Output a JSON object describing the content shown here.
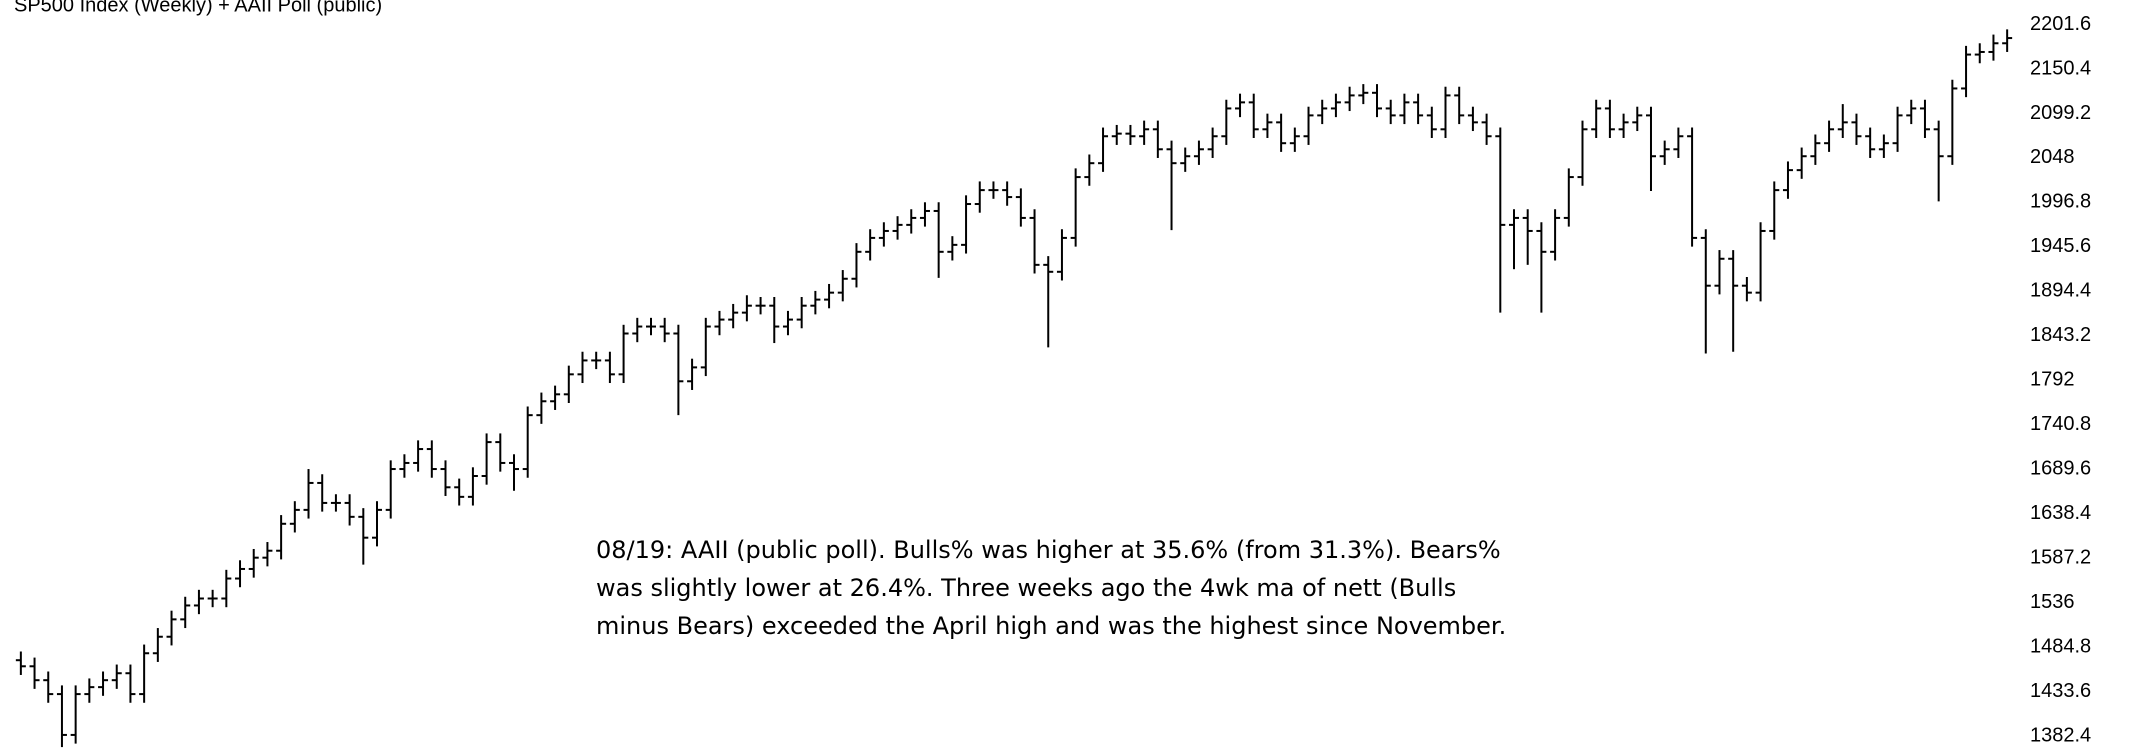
{
  "chart_data": {
    "type": "ohlc",
    "title": "SP500 Index (Weekly) + AAII Poll  (public)",
    "annotation": [
      "08/19: AAII (public poll). Bulls% was higher at 35.6% (from 31.3%). Bears%",
      "was slightly lower at 26.4%. Three weeks ago the 4wk ma of nett (Bulls",
      "minus Bears) exceeded the April high and was the highest since November."
    ],
    "color": "#000000",
    "ylim": [
      1360.9,
      2229.8
    ],
    "yticks": [
      2201.6,
      2150.4,
      2099.2,
      2048,
      1996.8,
      1945.6,
      1894.4,
      1843.2,
      1792,
      1740.8,
      1689.6,
      1638.4,
      1587.2,
      1536,
      1484.8,
      1433.6,
      1382.4
    ],
    "open": [
      1470,
      1463,
      1447,
      1431,
      1384,
      1431,
      1439,
      1447,
      1455,
      1431,
      1478,
      1497,
      1517,
      1533,
      1541,
      1541,
      1564,
      1575,
      1588,
      1596,
      1627,
      1643,
      1674,
      1651,
      1651,
      1635,
      1611,
      1643,
      1690,
      1697,
      1713,
      1690,
      1669,
      1658,
      1682,
      1721,
      1697,
      1690,
      1752,
      1768,
      1776,
      1799,
      1815,
      1815,
      1799,
      1846,
      1854,
      1854,
      1846,
      1791,
      1807,
      1854,
      1862,
      1870,
      1878,
      1878,
      1854,
      1862,
      1878,
      1885,
      1893,
      1909,
      1940,
      1956,
      1964,
      1971,
      1979,
      1987,
      1940,
      1948,
      1995,
      2011,
      2011,
      2003,
      1979,
      1925,
      1917,
      1956,
      2026,
      2042,
      2073,
      2076,
      2073,
      2081,
      2058,
      2042,
      2050,
      2058,
      2073,
      2105,
      2112,
      2081,
      2089,
      2065,
      2073,
      2097,
      2105,
      2112,
      2120,
      2123,
      2105,
      2097,
      2112,
      2097,
      2081,
      2120,
      2097,
      2089,
      2073,
      1971,
      1979,
      1964,
      1940,
      1979,
      2026,
      2081,
      2105,
      2081,
      2089,
      2097,
      2050,
      2058,
      2073,
      1956,
      1901,
      1932,
      1901,
      1893,
      1964,
      2011,
      2034,
      2050,
      2065,
      2081,
      2089,
      2073,
      2058,
      2065,
      2097,
      2105,
      2081,
      2050,
      2128,
      2167,
      2170,
      2180
    ],
    "high": [
      1480,
      1473,
      1457,
      1441,
      1441,
      1449,
      1457,
      1465,
      1465,
      1488,
      1507,
      1527,
      1543,
      1551,
      1551,
      1574,
      1585,
      1598,
      1606,
      1637,
      1653,
      1690,
      1684,
      1661,
      1661,
      1645,
      1653,
      1700,
      1707,
      1723,
      1723,
      1700,
      1679,
      1692,
      1731,
      1731,
      1707,
      1762,
      1778,
      1786,
      1809,
      1825,
      1825,
      1825,
      1856,
      1864,
      1864,
      1864,
      1856,
      1817,
      1864,
      1872,
      1880,
      1890,
      1888,
      1888,
      1872,
      1888,
      1895,
      1903,
      1919,
      1950,
      1966,
      1974,
      1981,
      1989,
      1997,
      1997,
      1958,
      2005,
      2021,
      2021,
      2021,
      2013,
      1989,
      1935,
      1966,
      2036,
      2052,
      2083,
      2086,
      2086,
      2091,
      2091,
      2068,
      2060,
      2068,
      2083,
      2115,
      2122,
      2122,
      2099,
      2099,
      2083,
      2107,
      2115,
      2122,
      2130,
      2133,
      2133,
      2115,
      2122,
      2122,
      2107,
      2130,
      2130,
      2107,
      2099,
      2083,
      1989,
      1989,
      1974,
      1989,
      2036,
      2091,
      2115,
      2115,
      2099,
      2107,
      2107,
      2068,
      2083,
      2083,
      1966,
      1942,
      1942,
      1911,
      1974,
      2021,
      2044,
      2060,
      2075,
      2091,
      2110,
      2099,
      2083,
      2075,
      2107,
      2115,
      2115,
      2091,
      2138,
      2177,
      2180,
      2190,
      2196
    ],
    "low": [
      1453,
      1437,
      1421,
      1370,
      1374,
      1421,
      1429,
      1437,
      1421,
      1421,
      1468,
      1487,
      1507,
      1523,
      1531,
      1531,
      1554,
      1565,
      1578,
      1586,
      1617,
      1633,
      1641,
      1641,
      1625,
      1580,
      1601,
      1633,
      1680,
      1687,
      1680,
      1659,
      1648,
      1648,
      1672,
      1687,
      1665,
      1680,
      1742,
      1758,
      1766,
      1789,
      1805,
      1789,
      1789,
      1836,
      1844,
      1836,
      1752,
      1781,
      1797,
      1844,
      1852,
      1860,
      1868,
      1835,
      1844,
      1852,
      1868,
      1875,
      1883,
      1899,
      1930,
      1946,
      1954,
      1961,
      1969,
      1910,
      1930,
      1938,
      1985,
      2001,
      1993,
      1969,
      1915,
      1830,
      1907,
      1946,
      2016,
      2032,
      2063,
      2063,
      2063,
      2048,
      1965,
      2032,
      2040,
      2048,
      2063,
      2095,
      2071,
      2071,
      2055,
      2055,
      2063,
      2087,
      2095,
      2102,
      2110,
      2095,
      2087,
      2087,
      2087,
      2071,
      2071,
      2087,
      2079,
      2063,
      1870,
      1920,
      1925,
      1870,
      1930,
      1969,
      2016,
      2071,
      2071,
      2071,
      2079,
      2010,
      2040,
      2048,
      1946,
      1823,
      1891,
      1825,
      1883,
      1883,
      1954,
      2001,
      2024,
      2040,
      2055,
      2071,
      2063,
      2048,
      2048,
      2055,
      2087,
      2071,
      1998,
      2040,
      2118,
      2157,
      2160,
      2170
    ],
    "close": [
      1463,
      1447,
      1431,
      1384,
      1431,
      1439,
      1447,
      1455,
      1431,
      1478,
      1497,
      1517,
      1533,
      1541,
      1541,
      1564,
      1575,
      1588,
      1596,
      1627,
      1643,
      1674,
      1651,
      1651,
      1635,
      1611,
      1643,
      1690,
      1697,
      1713,
      1690,
      1669,
      1658,
      1682,
      1721,
      1697,
      1690,
      1752,
      1768,
      1776,
      1799,
      1815,
      1815,
      1799,
      1846,
      1854,
      1854,
      1846,
      1791,
      1807,
      1854,
      1862,
      1870,
      1878,
      1878,
      1854,
      1862,
      1878,
      1885,
      1893,
      1909,
      1940,
      1956,
      1964,
      1971,
      1979,
      1987,
      1940,
      1948,
      1995,
      2011,
      2011,
      2003,
      1979,
      1925,
      1917,
      1956,
      2026,
      2042,
      2073,
      2076,
      2073,
      2081,
      2058,
      2042,
      2050,
      2058,
      2073,
      2105,
      2112,
      2081,
      2089,
      2065,
      2073,
      2097,
      2105,
      2112,
      2120,
      2123,
      2105,
      2097,
      2112,
      2097,
      2081,
      2120,
      2097,
      2089,
      2073,
      1971,
      1979,
      1964,
      1940,
      1979,
      2026,
      2081,
      2105,
      2081,
      2089,
      2097,
      2050,
      2058,
      2073,
      1956,
      1901,
      1932,
      1901,
      1893,
      1964,
      2011,
      2034,
      2050,
      2065,
      2081,
      2089,
      2073,
      2058,
      2065,
      2097,
      2105,
      2081,
      2050,
      2128,
      2167,
      2170,
      2180,
      2186
    ]
  }
}
